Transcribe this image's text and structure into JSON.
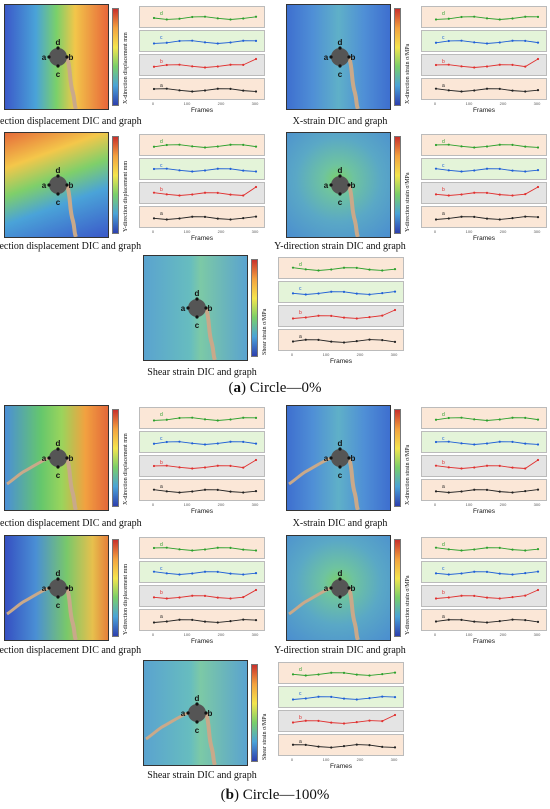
{
  "sections": [
    {
      "label_letter": "a",
      "label_text": " Circle—0%",
      "panels": [
        {
          "id": "a1",
          "caption": "X-direction displacement DIC and graph",
          "ylabel": "X-direction displacement mm",
          "xlabel": "Frames",
          "theme": "xdisp"
        },
        {
          "id": "a2",
          "caption": "X-strain DIC and graph",
          "ylabel": "X-direction strain σ/MPa",
          "xlabel": "Frames",
          "theme": "strain"
        },
        {
          "id": "a3",
          "caption": "Y-direction displacement DIC and graph",
          "ylabel": "Y-direction displacement mm",
          "xlabel": "Frames",
          "theme": "ydisp"
        },
        {
          "id": "a4",
          "caption": "Y-direction strain DIC and graph",
          "ylabel": "Y-direction strain σ/MPa",
          "xlabel": "Frames",
          "theme": "strain2"
        },
        {
          "id": "a5",
          "caption": "Shear strain DIC and graph",
          "ylabel": "Shear strain σ/MPa",
          "xlabel": "Frames",
          "theme": "shear"
        }
      ]
    },
    {
      "label_letter": "b",
      "label_text": " Circle—100%",
      "panels": [
        {
          "id": "b1",
          "caption": "X-direction displacement DIC and graph",
          "ylabel": "X-direction displacement mm",
          "xlabel": "Frames",
          "theme": "xdisp2"
        },
        {
          "id": "b2",
          "caption": "X-strain DIC and graph",
          "ylabel": "X-direction strain σ/MPa",
          "xlabel": "Frames",
          "theme": "strain"
        },
        {
          "id": "b3",
          "caption": "Y-direction displacement DIC and graph",
          "ylabel": "Y-direction displacement mm",
          "xlabel": "Frames",
          "theme": "ydisp2"
        },
        {
          "id": "b4",
          "caption": "Y-direction strain DIC and graph",
          "ylabel": "Y-direction strain σ/MPa",
          "xlabel": "Frames",
          "theme": "strain2"
        },
        {
          "id": "b5",
          "caption": "Shear strain DIC and graph",
          "ylabel": "Shear strain σ/MPa",
          "xlabel": "Frames",
          "theme": "shear"
        }
      ]
    }
  ],
  "point_labels": [
    "a",
    "b",
    "c",
    "d"
  ],
  "graph_bands": [
    {
      "series": "d",
      "color": "#2ca02c",
      "bg": "#fbe7d7"
    },
    {
      "series": "c",
      "color": "#1f5fd6",
      "bg": "#e4f4d9"
    },
    {
      "series": "b",
      "color": "#e0302f",
      "bg": "#e4e4e4"
    },
    {
      "series": "a",
      "color": "#222222",
      "bg": "#fbe7d7"
    }
  ],
  "frame_ticks": [
    "0",
    "100",
    "200",
    "300"
  ],
  "colors": {
    "hole": "#555555",
    "crack": "#c9a98a"
  }
}
